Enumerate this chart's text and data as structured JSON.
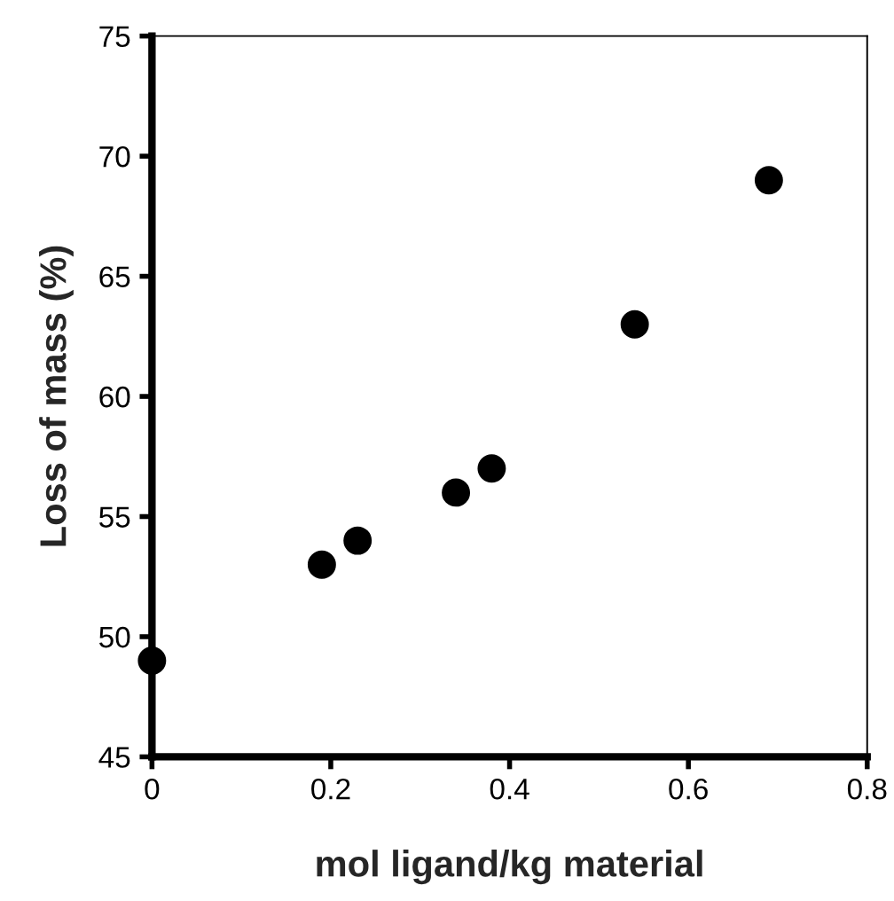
{
  "chart_data": {
    "type": "scatter",
    "xlabel": "mol ligand/kg material",
    "ylabel": "Loss of mass (%)",
    "x": [
      0,
      0.19,
      0.23,
      0.34,
      0.38,
      0.54,
      0.69
    ],
    "series": [
      {
        "color": "#000000",
        "values": [
          49,
          53,
          54,
          56,
          57,
          63,
          69
        ]
      }
    ],
    "xlim": [
      0,
      0.8
    ],
    "xticks": [
      0,
      {
        "value": 0.2,
        "label": "0.2"
      },
      {
        "value": 0.4,
        "label": "0.4"
      },
      {
        "value": 0.6,
        "label": "0.6"
      },
      {
        "value": 0.8,
        "label": "0.8"
      }
    ],
    "ylim": [
      45,
      75
    ],
    "yticks": [
      45,
      50,
      55,
      60,
      65,
      70,
      75
    ],
    "marker": "circle",
    "grid": false,
    "legend": false
  }
}
